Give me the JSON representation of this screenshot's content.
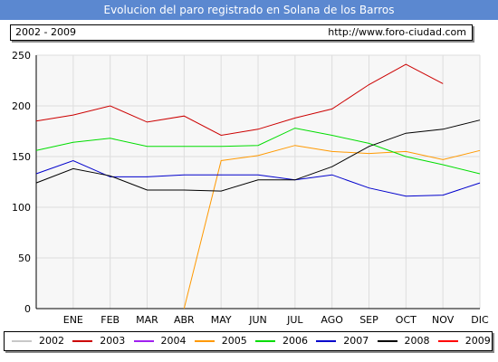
{
  "header": {
    "title": "Evolucion del paro registrado en Solana de los Barros",
    "period": "2002 - 2009",
    "url": "http://www.foro-ciudad.com"
  },
  "chart_data": {
    "type": "line",
    "title": "Evolucion del paro registrado en Solana de los Barros",
    "xlabel": "",
    "ylabel": "",
    "categories": [
      "",
      "ENE",
      "FEB",
      "MAR",
      "ABR",
      "MAY",
      "JUN",
      "JUL",
      "AGO",
      "SEP",
      "OCT",
      "NOV",
      "DIC"
    ],
    "ylim": [
      0,
      250
    ],
    "yticks": [
      0,
      50,
      100,
      150,
      200,
      250
    ],
    "grid": true,
    "legend": "bottom",
    "series": [
      {
        "name": "2002",
        "color": "#c8c8c8",
        "values": [
          null,
          null,
          null,
          null,
          null,
          null,
          null,
          null,
          null,
          null,
          null,
          null,
          null
        ]
      },
      {
        "name": "2003",
        "color": "#cc0000",
        "values": [
          185,
          191,
          200,
          184,
          190,
          171,
          177,
          188,
          197,
          221,
          241,
          222,
          null
        ]
      },
      {
        "name": "2004",
        "color": "#a020f0",
        "values": [
          null,
          null,
          null,
          null,
          null,
          null,
          null,
          null,
          null,
          null,
          null,
          null,
          null
        ]
      },
      {
        "name": "2005",
        "color": "#ff9900",
        "values": [
          null,
          null,
          null,
          null,
          0,
          146,
          151,
          161,
          155,
          153,
          155,
          147,
          156
        ]
      },
      {
        "name": "2006",
        "color": "#00dd00",
        "values": [
          156,
          164,
          168,
          160,
          160,
          160,
          161,
          178,
          171,
          163,
          150,
          142,
          133
        ]
      },
      {
        "name": "2007",
        "color": "#0000cc",
        "values": [
          133,
          146,
          130,
          130,
          132,
          132,
          132,
          127,
          132,
          119,
          111,
          112,
          124
        ]
      },
      {
        "name": "2008",
        "color": "#000000",
        "values": [
          124,
          138,
          131,
          117,
          117,
          116,
          127,
          127,
          140,
          160,
          173,
          177,
          186
        ]
      },
      {
        "name": "2009",
        "color": "#ff0000",
        "values": [
          null,
          null,
          null,
          null,
          null,
          null,
          null,
          null,
          null,
          null,
          null,
          null,
          null
        ]
      }
    ]
  }
}
